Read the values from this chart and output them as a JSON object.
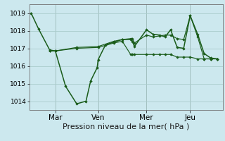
{
  "bg_color": "#cce8ee",
  "grid_color": "#aacccc",
  "line_color": "#1a5c1a",
  "marker_color": "#1a5c1a",
  "xlabel": "Pression niveau de la mer( hPa )",
  "xlabel_fontsize": 8,
  "yticks": [
    1014,
    1015,
    1016,
    1017,
    1018,
    1019
  ],
  "ylim": [
    1013.5,
    1019.5
  ],
  "xtick_labels": [
    "Mar",
    "Ven",
    "Mer",
    "Jeu"
  ],
  "xtick_positions": [
    0.13,
    0.36,
    0.62,
    0.855
  ],
  "xlim": [
    -0.01,
    1.03
  ],
  "series": [
    [
      0.0,
      1019.0,
      0.04,
      1018.1,
      0.1,
      1016.9,
      0.13,
      1016.85,
      0.185,
      1014.85,
      0.245,
      1013.85,
      0.295,
      1014.0,
      0.32,
      1015.15,
      0.355,
      1015.9,
      0.36,
      1016.35,
      0.4,
      1017.2,
      0.445,
      1017.35,
      0.49,
      1017.5,
      0.535,
      1017.5,
      0.545,
      1017.4,
      0.555,
      1017.1,
      0.62,
      1018.05,
      0.655,
      1017.8,
      0.69,
      1017.75,
      0.72,
      1017.65,
      0.75,
      1018.05,
      0.785,
      1017.05,
      0.82,
      1017.0,
      0.855,
      1018.85,
      0.895,
      1017.8,
      0.93,
      1016.7,
      0.965,
      1016.45,
      1.0,
      1016.4
    ],
    [
      0.1,
      1016.85,
      0.13,
      1016.85,
      0.245,
      1017.0,
      0.36,
      1017.05,
      0.445,
      1017.3,
      0.49,
      1017.4,
      0.535,
      1016.65,
      0.545,
      1016.65,
      0.555,
      1016.65,
      0.62,
      1016.65,
      0.655,
      1016.65,
      0.69,
      1016.65,
      0.72,
      1016.65,
      0.75,
      1016.65,
      0.785,
      1016.5,
      0.82,
      1016.5,
      0.855,
      1016.5,
      0.895,
      1016.4,
      0.93,
      1016.4,
      0.965,
      1016.4,
      1.0,
      1016.4
    ],
    [
      0.1,
      1016.85,
      0.13,
      1016.85,
      0.245,
      1017.05,
      0.36,
      1017.1,
      0.445,
      1017.4,
      0.49,
      1017.5,
      0.535,
      1017.55,
      0.545,
      1017.55,
      0.555,
      1017.3,
      0.62,
      1017.75,
      0.655,
      1017.65,
      0.69,
      1017.7,
      0.72,
      1017.75,
      0.75,
      1017.75,
      0.785,
      1017.55,
      0.82,
      1017.5,
      0.855,
      1018.85,
      0.895,
      1017.65,
      0.93,
      1016.4,
      0.965,
      1016.4,
      1.0,
      1016.4
    ]
  ]
}
